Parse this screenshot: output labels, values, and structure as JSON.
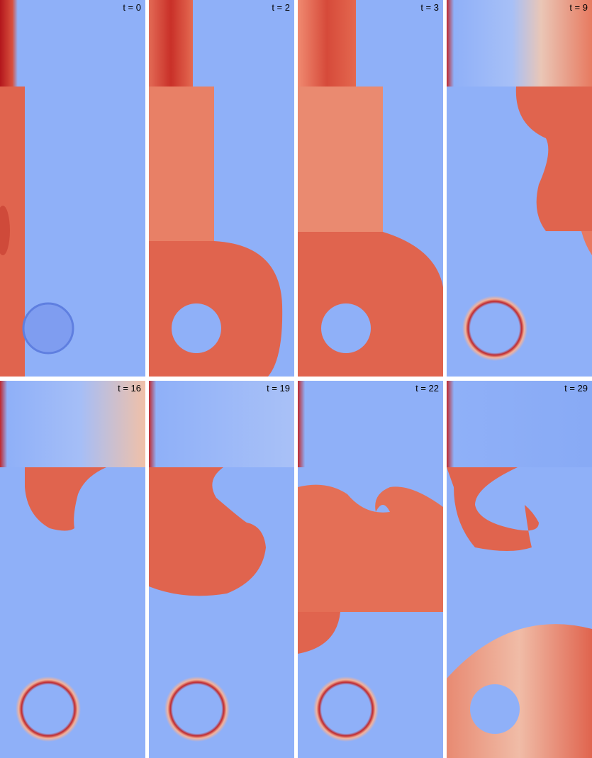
{
  "colors": {
    "background_blue": "#8fb0f8",
    "deep_red": "#c0282d",
    "mid_red": "#e0644e",
    "light_red": "#f0a080",
    "pale": "#e8d8d0",
    "separator": "#ffffff"
  },
  "panels": [
    {
      "time_label": "t = 0"
    },
    {
      "time_label": "t = 2"
    },
    {
      "time_label": "t = 3"
    },
    {
      "time_label": "t = 9"
    },
    {
      "time_label": "t = 16"
    },
    {
      "time_label": "t = 19"
    },
    {
      "time_label": "t = 22"
    },
    {
      "time_label": "t = 29"
    }
  ]
}
